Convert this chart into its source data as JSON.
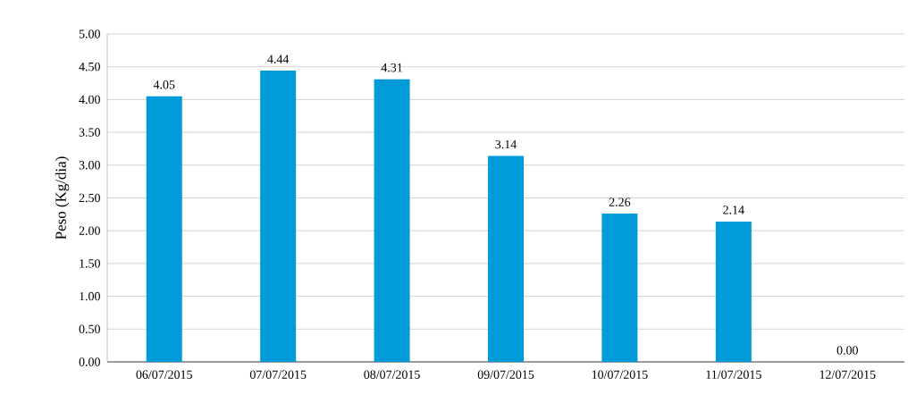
{
  "chart_data": {
    "type": "bar",
    "ylabel": "Peso (Kg/dia)",
    "categories": [
      "06/07/2015",
      "07/07/2015",
      "08/07/2015",
      "09/07/2015",
      "10/07/2015",
      "11/07/2015",
      "12/07/2015"
    ],
    "values": [
      4.05,
      4.44,
      4.31,
      3.14,
      2.26,
      2.14,
      0.0
    ],
    "value_labels": [
      "4.05",
      "4.44",
      "4.31",
      "3.14",
      "2.26",
      "2.14",
      "0.00"
    ],
    "color": "#019bd9",
    "ylim": [
      0,
      5
    ],
    "yticks": [
      {
        "value": 0,
        "label": "0.00"
      },
      {
        "value": 0.5,
        "label": "0.50"
      },
      {
        "value": 1,
        "label": "1.00"
      },
      {
        "value": 1.5,
        "label": "1.50"
      },
      {
        "value": 2,
        "label": "2.00"
      },
      {
        "value": 2.5,
        "label": "2.50"
      },
      {
        "value": 3,
        "label": "3.00"
      },
      {
        "value": 3.5,
        "label": "3.50"
      },
      {
        "value": 4,
        "label": "4.00"
      },
      {
        "value": 4.5,
        "label": "4.50"
      },
      {
        "value": 5,
        "label": "5.00"
      }
    ],
    "grid": "y"
  }
}
